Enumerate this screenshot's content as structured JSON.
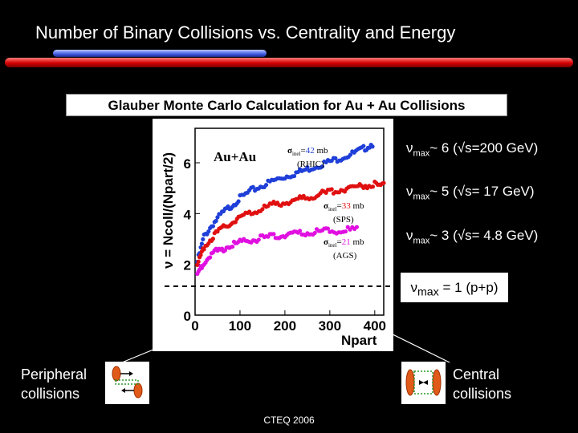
{
  "slide": {
    "title": "Number of Binary Collisions vs. Centrality and Energy",
    "subtitle": "Glauber Monte Carlo Calculation for Au + Au Collisions",
    "footer": "CTEQ 2006"
  },
  "plot": {
    "y_label": "ν = Ncoll/(Npart/2)",
    "x_label": "Npart",
    "system_label": "Au+Au",
    "x_ticks": [
      "0",
      "100",
      "200",
      "300",
      "400"
    ],
    "y_ticks": [
      "0",
      "2",
      "4",
      "6"
    ],
    "annotations": [
      {
        "sigma": "σ",
        "sub": "inel",
        "eq": "=",
        "value": "42",
        "unit": "mb",
        "tag": "(RHIC)",
        "value_color": "#1f3fd8"
      },
      {
        "sigma": "σ",
        "sub": "inel",
        "eq": "=",
        "value": "33",
        "unit": "mb",
        "tag": "(SPS)",
        "value_color": "#e01010"
      },
      {
        "sigma": "σ",
        "sub": "inel",
        "eq": "=",
        "value": "21",
        "unit": "mb",
        "tag": "(AGS)",
        "value_color": "#e010e0"
      }
    ]
  },
  "nu_max": [
    {
      "pre": "ν",
      "sub": "max",
      "text": "~ 6 (√s=200 GeV)"
    },
    {
      "pre": "ν",
      "sub": "max",
      "text": "~ 5 (√s= 17 GeV)"
    },
    {
      "pre": "ν",
      "sub": "max",
      "text": "~ 3 (√s= 4.8 GeV)"
    },
    {
      "pre": "ν",
      "sub": "max",
      "text": " = 1 (p+p)"
    }
  ],
  "collisions": {
    "peripheral": [
      "Peripheral",
      "collisions"
    ],
    "central": [
      "Central",
      "collisions"
    ]
  },
  "chart_data": {
    "type": "scatter",
    "title": "",
    "xlabel": "Npart",
    "ylabel": "ν = Ncoll/(Npart/2)",
    "xlim": [
      0,
      420
    ],
    "ylim": [
      0,
      7.2
    ],
    "series": [
      {
        "color": "#1f3fd8",
        "x": [
          5,
          20,
          40,
          60,
          80,
          100,
          125,
          150,
          175,
          200,
          225,
          250,
          275,
          300,
          325,
          350,
          375,
          395
        ],
        "y": [
          2.1,
          3.1,
          3.6,
          4.0,
          4.3,
          4.6,
          4.9,
          5.1,
          5.3,
          5.45,
          5.6,
          5.75,
          5.9,
          6.05,
          6.2,
          6.35,
          6.55,
          6.75
        ]
      },
      {
        "color": "#e01010",
        "x": [
          5,
          20,
          40,
          60,
          80,
          100,
          125,
          150,
          175,
          200,
          225,
          250,
          275,
          300,
          325,
          350,
          375,
          400,
          420
        ],
        "y": [
          1.9,
          2.7,
          3.1,
          3.4,
          3.65,
          3.85,
          4.05,
          4.2,
          4.35,
          4.45,
          4.55,
          4.65,
          4.75,
          4.85,
          4.95,
          5.05,
          5.1,
          5.15,
          5.1
        ]
      },
      {
        "color": "#e010e0",
        "x": [
          5,
          20,
          40,
          60,
          80,
          100,
          125,
          150,
          175,
          200,
          225,
          250,
          275,
          300,
          330,
          360
        ],
        "y": [
          1.6,
          2.1,
          2.45,
          2.6,
          2.75,
          2.85,
          2.95,
          3.05,
          3.1,
          3.15,
          3.2,
          3.25,
          3.28,
          3.32,
          3.35,
          3.38
        ]
      }
    ]
  }
}
